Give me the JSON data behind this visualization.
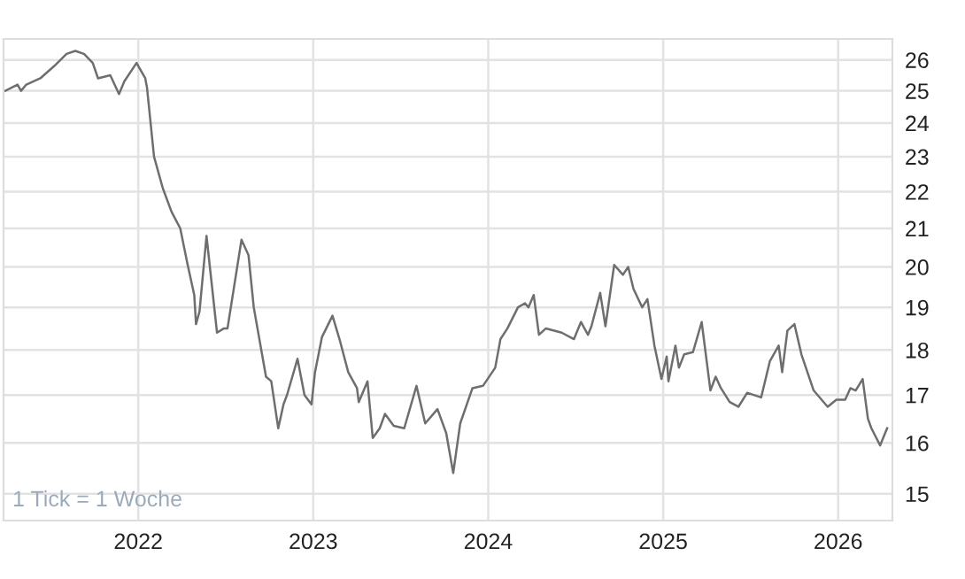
{
  "chart_data": {
    "type": "line",
    "log": "y",
    "grid": true,
    "x": [
      2021.24,
      2021.31,
      2021.33,
      2021.36,
      2021.44,
      2021.52,
      2021.59,
      2021.64,
      2021.69,
      2021.74,
      2021.77,
      2021.84,
      2021.89,
      2021.92,
      2021.99,
      2022.04,
      2022.05,
      2022.09,
      2022.14,
      2022.19,
      2022.24,
      2022.28,
      2022.32,
      2022.33,
      2022.35,
      2022.39,
      2022.45,
      2022.49,
      2022.51,
      2022.59,
      2022.63,
      2022.66,
      2022.73,
      2022.76,
      2022.8,
      2022.83,
      2022.85,
      2022.91,
      2022.95,
      2022.99,
      2023.01,
      2023.05,
      2023.11,
      2023.15,
      2023.2,
      2023.25,
      2023.26,
      2023.31,
      2023.34,
      2023.38,
      2023.41,
      2023.46,
      2023.52,
      2023.59,
      2023.64,
      2023.71,
      2023.76,
      2023.8,
      2023.84,
      2023.91,
      2023.97,
      2024.04,
      2024.07,
      2024.11,
      2024.17,
      2024.21,
      2024.23,
      2024.26,
      2024.29,
      2024.33,
      2024.42,
      2024.49,
      2024.53,
      2024.57,
      2024.59,
      2024.64,
      2024.67,
      2024.72,
      2024.77,
      2024.8,
      2024.83,
      2024.88,
      2024.91,
      2024.95,
      2024.99,
      2025.02,
      2025.03,
      2025.07,
      2025.09,
      2025.12,
      2025.17,
      2025.22,
      2025.27,
      2025.3,
      2025.33,
      2025.38,
      2025.43,
      2025.48,
      2025.56,
      2025.61,
      2025.66,
      2025.68,
      2025.71,
      2025.75,
      2025.79,
      2025.86,
      2025.94,
      2025.99,
      2026.04,
      2026.07,
      2026.1,
      2026.14,
      2026.17,
      2026.19,
      2026.24,
      2026.28
    ],
    "series": [
      {
        "color": "#6e6e6e",
        "values": [
          25.0,
          25.2,
          25.0,
          25.2,
          25.4,
          25.8,
          26.2,
          26.3,
          26.2,
          25.9,
          25.4,
          25.5,
          24.9,
          25.3,
          25.9,
          25.4,
          25.1,
          23.0,
          22.1,
          21.45,
          21.0,
          20.1,
          19.3,
          18.6,
          18.9,
          20.8,
          18.4,
          18.5,
          18.5,
          20.7,
          20.3,
          19.0,
          17.4,
          17.3,
          16.3,
          16.8,
          17.0,
          17.8,
          17.0,
          16.8,
          17.5,
          18.3,
          18.8,
          18.25,
          17.5,
          17.15,
          16.85,
          17.3,
          16.1,
          16.3,
          16.6,
          16.35,
          16.3,
          17.2,
          16.4,
          16.7,
          16.2,
          15.4,
          16.4,
          17.15,
          17.2,
          17.6,
          18.25,
          18.5,
          19.0,
          19.1,
          19.0,
          19.3,
          18.35,
          18.5,
          18.4,
          18.25,
          18.65,
          18.35,
          18.55,
          19.35,
          18.55,
          20.05,
          19.8,
          20.0,
          19.45,
          19.0,
          19.2,
          18.1,
          17.35,
          17.85,
          17.3,
          18.1,
          17.6,
          17.9,
          17.95,
          18.65,
          17.1,
          17.4,
          17.15,
          16.85,
          16.75,
          17.05,
          16.95,
          17.75,
          18.1,
          17.5,
          18.45,
          18.6,
          17.9,
          17.1,
          16.75,
          16.9,
          16.9,
          17.15,
          17.1,
          17.35,
          16.5,
          16.3,
          15.95,
          16.3
        ]
      }
    ],
    "xlim": [
      2021.23,
      2026.31
    ],
    "xticks": [
      2022,
      2023,
      2024,
      2025,
      2026
    ],
    "ylim": [
      14.5,
      26.7
    ],
    "yticks": [
      15,
      16,
      17,
      18,
      19,
      20,
      21,
      22,
      23,
      24,
      25,
      26
    ],
    "annotations": [
      "1 Tick = 1 Woche"
    ]
  }
}
